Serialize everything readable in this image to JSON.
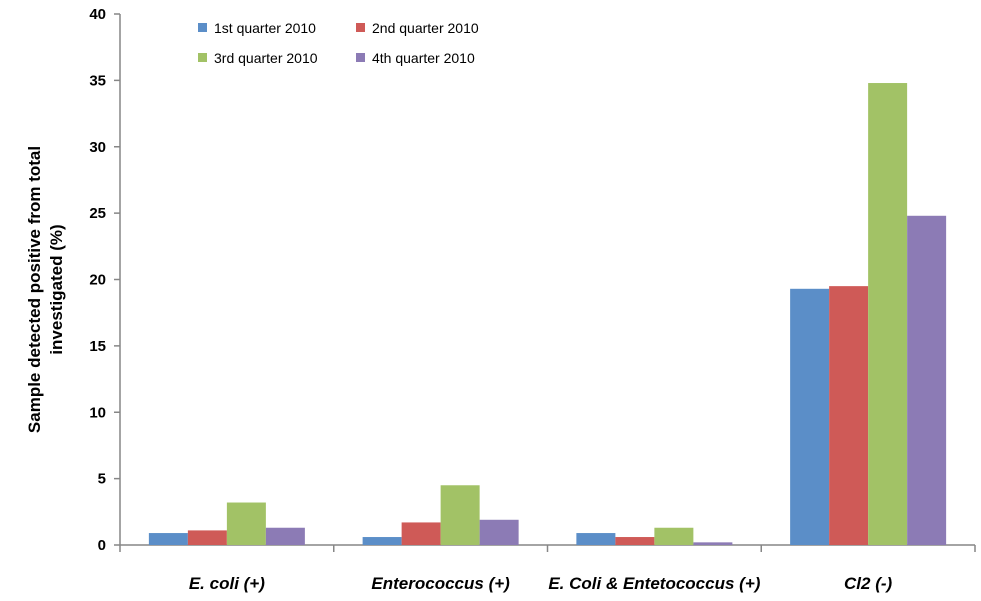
{
  "chart_data": {
    "type": "bar",
    "title": "",
    "xlabel": "",
    "ylabel_lines": [
      "Sample detected positive from total",
      "investigated (%)"
    ],
    "ylim": [
      0,
      40
    ],
    "yticks": [
      0,
      5,
      10,
      15,
      20,
      25,
      30,
      35,
      40
    ],
    "categories": [
      "E. coli (+)",
      "Enterococcus (+)",
      "E. Coli & Entetococcus (+)",
      "Cl2 (-)"
    ],
    "series": [
      {
        "name": "1st quarter 2010",
        "color": "#5b8ec8",
        "values": [
          0.9,
          0.6,
          0.9,
          19.3
        ]
      },
      {
        "name": "2nd quarter 2010",
        "color": "#cf5a57",
        "values": [
          1.1,
          1.7,
          0.6,
          19.5
        ]
      },
      {
        "name": "3rd quarter 2010",
        "color": "#a2c266",
        "values": [
          3.2,
          4.5,
          1.3,
          34.8
        ]
      },
      {
        "name": "4th quarter 2010",
        "color": "#8c7bb5",
        "values": [
          1.3,
          1.9,
          0.2,
          24.8
        ]
      }
    ],
    "legend_position": "top-left",
    "grid": false
  }
}
